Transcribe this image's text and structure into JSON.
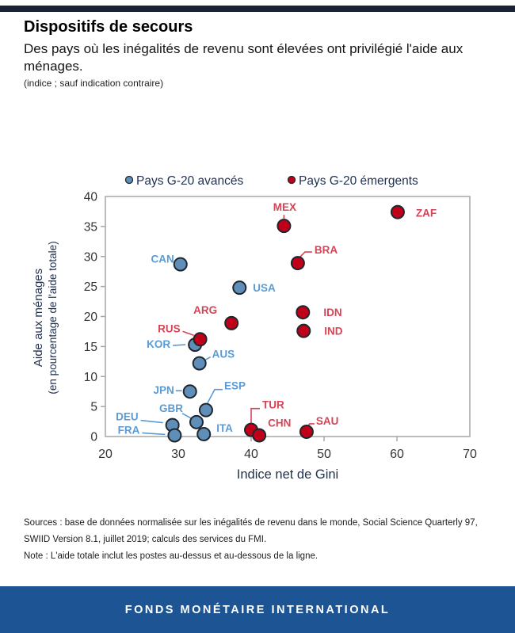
{
  "header": {
    "title": "Dispositifs de secours",
    "subtitle": "Des pays où les inégalités de revenu sont élevées ont privilégié l'aide aux ménages.",
    "unit_note": "(indice ; sauf indication contraire)"
  },
  "colors": {
    "advanced_fill": "#5f8fb9",
    "advanced_label": "#5b9bd5",
    "emerging_fill": "#c00018",
    "emerging_label": "#d64456",
    "marker_stroke": "#20262e",
    "axis_line": "#a6a6a6",
    "tick_text": "#333333",
    "legend_text": "#1f3050",
    "top_bar": "#1a2232",
    "footer_band": "#1d5493"
  },
  "chart_data": {
    "type": "scatter",
    "xlabel": "Indice net de Gini",
    "ylabel_line1": "Aide aux ménages",
    "ylabel_line2": "(en pourcentage de l'aide totale)",
    "xlim": [
      20,
      70
    ],
    "ylim": [
      0,
      40
    ],
    "xticks": [
      20,
      30,
      40,
      50,
      60,
      70
    ],
    "yticks": [
      0,
      5,
      10,
      15,
      20,
      25,
      30,
      35,
      40
    ],
    "grid": false,
    "legend_position": "top",
    "legend": [
      {
        "label": "Pays G-20 avancés",
        "group": "advanced"
      },
      {
        "label": "Pays G-20 émergents",
        "group": "emerging"
      }
    ],
    "series": [
      {
        "name": "Pays G-20 avancés",
        "group": "advanced",
        "points": [
          {
            "code": "CAN",
            "x": 30.3,
            "y": 28.7,
            "label": {
              "dx": -8,
              "dy": -2,
              "anchor": "end"
            }
          },
          {
            "code": "USA",
            "x": 38.4,
            "y": 24.8,
            "label": {
              "dx": 17,
              "dy": 5,
              "anchor": "start"
            }
          },
          {
            "code": "KOR",
            "x": 32.3,
            "y": 15.3,
            "label": {
              "dx": -31,
              "dy": 4,
              "anchor": "end"
            },
            "leader": [
              [
                -28,
                1
              ],
              [
                -12,
                0
              ]
            ]
          },
          {
            "code": "AUS",
            "x": 32.9,
            "y": 12.2,
            "label": {
              "dx": 16,
              "dy": -7,
              "anchor": "start"
            },
            "leader": [
              [
                14,
                -8
              ],
              [
                7,
                -4
              ]
            ]
          },
          {
            "code": "JPN",
            "x": 31.6,
            "y": 7.5,
            "label": {
              "dx": -20,
              "dy": 3,
              "anchor": "end"
            },
            "leader": [
              [
                -18,
                -1
              ],
              [
                -10,
                -1
              ]
            ]
          },
          {
            "code": "ESP",
            "x": 33.8,
            "y": 4.4,
            "label": {
              "dx": 23,
              "dy": -26,
              "anchor": "start"
            },
            "leader": [
              [
                21,
                -26
              ],
              [
                11,
                -26
              ],
              [
                2,
                -9
              ]
            ]
          },
          {
            "code": "GBR",
            "x": 32.5,
            "y": 2.4,
            "label": {
              "dx": -32,
              "dy": -13,
              "anchor": "middle"
            },
            "leader": [
              [
                -18,
                -11
              ],
              [
                -7,
                -5
              ]
            ]
          },
          {
            "code": "DEU",
            "x": 29.2,
            "y": 1.9,
            "label": {
              "dx": -43,
              "dy": -6,
              "anchor": "end"
            },
            "leader": [
              [
                -40,
                -6
              ],
              [
                -12,
                -3
              ]
            ]
          },
          {
            "code": "ITA",
            "x": 33.5,
            "y": 0.4,
            "label": {
              "dx": 16,
              "dy": -3,
              "anchor": "start"
            }
          },
          {
            "code": "FRA",
            "x": 29.5,
            "y": 0.2,
            "label": {
              "dx": -44,
              "dy": -2,
              "anchor": "end"
            },
            "leader": [
              [
                -41,
                -3
              ],
              [
                -12,
                -1
              ]
            ]
          }
        ]
      },
      {
        "name": "Pays G-20 émergents",
        "group": "emerging",
        "points": [
          {
            "code": "MEX",
            "x": 44.5,
            "y": 35.1,
            "label": {
              "dx": 1,
              "dy": -19,
              "anchor": "middle"
            },
            "leader": [
              [
                0,
                -9
              ],
              [
                0,
                -14
              ]
            ]
          },
          {
            "code": "ARG",
            "x": 37.3,
            "y": 18.9,
            "label": {
              "dx": -33,
              "dy": -12,
              "anchor": "middle"
            }
          },
          {
            "code": "RUS",
            "x": 33.0,
            "y": 16.2,
            "label": {
              "dx": -25,
              "dy": -9,
              "anchor": "end"
            },
            "leader": [
              [
                -22,
                -10
              ],
              [
                -8,
                -5
              ]
            ]
          },
          {
            "code": "BRA",
            "x": 46.4,
            "y": 28.9,
            "label": {
              "dx": 21,
              "dy": -12,
              "anchor": "start"
            },
            "leader": [
              [
                18,
                -14
              ],
              [
                9,
                -14
              ],
              [
                2,
                -7
              ]
            ]
          },
          {
            "code": "IDN",
            "x": 47.1,
            "y": 20.7,
            "label": {
              "dx": 26,
              "dy": 5,
              "anchor": "start"
            }
          },
          {
            "code": "IND",
            "x": 47.2,
            "y": 17.6,
            "label": {
              "dx": 26,
              "dy": 5,
              "anchor": "start"
            }
          },
          {
            "code": "TUR",
            "x": 40.0,
            "y": 1.1,
            "label": {
              "dx": 14,
              "dy": -27,
              "anchor": "start"
            },
            "leader": [
              [
                0,
                -9
              ],
              [
                0,
                -27
              ],
              [
                11,
                -27
              ]
            ]
          },
          {
            "code": "CHN",
            "x": 41.1,
            "y": 0.2,
            "label": {
              "dx": 11,
              "dy": -11,
              "anchor": "start"
            }
          },
          {
            "code": "SAU",
            "x": 47.6,
            "y": 0.8,
            "label": {
              "dx": 12,
              "dy": -9,
              "anchor": "start"
            },
            "leader": [
              [
                10,
                -10
              ],
              [
                4,
                -10
              ],
              [
                0,
                -5
              ]
            ]
          },
          {
            "code": "ZAF",
            "x": 60.1,
            "y": 37.4,
            "label": {
              "dx": 23,
              "dy": 6,
              "anchor": "start"
            }
          }
        ]
      }
    ]
  },
  "footer": {
    "sources_line1": "Sources :  base de données normalisée sur les inégalités de revenu dans le monde, Social Science Quarterly 97,",
    "sources_line2": "SWIID Version 8.1, juillet 2019; calculs des services du FMI.",
    "note": "Note : L'aide totale inclut les postes au-dessus et au-dessous de la ligne.",
    "banner": "FONDS MONÉTAIRE INTERNATIONAL"
  }
}
